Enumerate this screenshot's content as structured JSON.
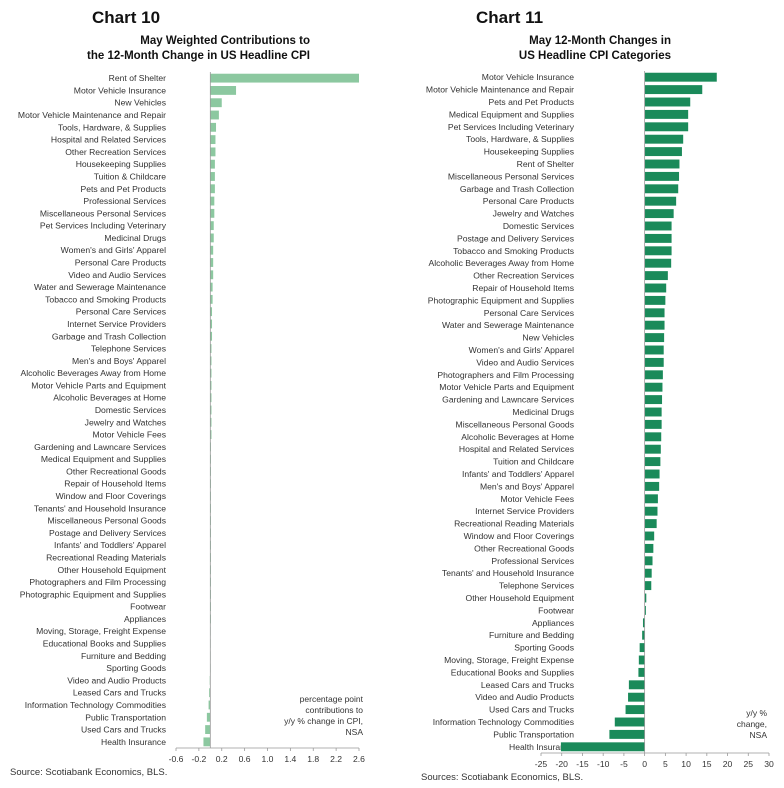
{
  "left": {
    "chart_number": "Chart 10",
    "title_line1": "May Weighted Contributions to",
    "title_line2": "the 12-Month Change in US Headline CPI",
    "note_lines": [
      "percentage point",
      "contributions to",
      "y/y % change in CPI,",
      "NSA"
    ],
    "source": "Source: Scotiabank Economics, BLS.",
    "bar_color": "#8cc8a0"
  },
  "right": {
    "chart_number": "Chart 11",
    "title_line1": "May 12-Month Changes in",
    "title_line2": "US Headline CPI Categories",
    "note_lines": [
      "y/y %",
      "change,",
      "NSA"
    ],
    "source": "Sources: Scotiabank Economics, BLS.",
    "bar_color": "#1a8a5a"
  },
  "chart_data": [
    {
      "type": "bar",
      "orientation": "horizontal",
      "title": "May Weighted Contributions to the 12-Month Change in US Headline CPI",
      "xlim": [
        -0.6,
        2.6
      ],
      "xticks": [
        "-0.6",
        "-0.2",
        "0.2",
        "0.6",
        "1.0",
        "1.4",
        "1.8",
        "2.2",
        "2.6"
      ],
      "grid": false,
      "categories": [
        "Rent of Shelter",
        "Motor Vehicle Insurance",
        "New Vehicles",
        "Motor Vehicle Maintenance and Repair",
        "Tools, Hardware, & Supplies",
        "Hospital and Related Services",
        "Other Recreation Services",
        "Housekeeping Supplies",
        "Tuition & Childcare",
        "Pets and Pet Products",
        "Professional Services",
        "Miscellaneous Personal Services",
        "Pet Services Including Veterinary",
        "Medicinal Drugs",
        "Women's and Girls' Apparel",
        "Personal Care Products",
        "Video and Audio Services",
        "Water and Sewerage Maintenance",
        "Tobacco and Smoking Products",
        "Personal Care Services",
        "Internet Service Providers",
        "Garbage and Trash Collection",
        "Telephone Services",
        "Men's and Boys' Apparel",
        "Alcoholic Beverages Away from Home",
        "Motor Vehicle Parts and Equipment",
        "Alcoholic Beverages at Home",
        "Domestic Services",
        "Jewelry and Watches",
        "Motor Vehicle Fees",
        "Gardening and Lawncare Services",
        "Medical Equipment and Supplies",
        "Other Recreational Goods",
        "Repair of Household Items",
        "Window and Floor Coverings",
        "Tenants' and Household Insurance",
        "Miscellaneous Personal Goods",
        "Postage and Delivery Services",
        "Infants' and Toddlers' Apparel",
        "Recreational Reading Materials",
        "Other Household Equipment",
        "Photographers and Film Processing",
        "Photographic Equipment and Supplies",
        "Footwear",
        "Appliances",
        "Moving, Storage, Freight Expense",
        "Educational Books and Supplies",
        "Furniture and Bedding",
        "Sporting Goods",
        "Video and Audio Products",
        "Leased Cars and Trucks",
        "Information Technology Commodities",
        "Public Transportation",
        "Used Cars and Trucks",
        "Health Insurance"
      ],
      "values": [
        2.6,
        0.45,
        0.2,
        0.15,
        0.1,
        0.09,
        0.09,
        0.08,
        0.08,
        0.08,
        0.07,
        0.07,
        0.06,
        0.06,
        0.05,
        0.05,
        0.05,
        0.04,
        0.04,
        0.03,
        0.03,
        0.03,
        0.02,
        0.02,
        0.02,
        0.02,
        0.02,
        0.02,
        0.02,
        0.02,
        0.01,
        0.01,
        0.01,
        0.01,
        0.01,
        0.01,
        0.01,
        0.01,
        0.01,
        0.01,
        0.005,
        0.005,
        0.005,
        0.0,
        0.0,
        -0.005,
        -0.005,
        -0.005,
        -0.005,
        -0.01,
        -0.02,
        -0.03,
        -0.06,
        -0.09,
        -0.12
      ]
    },
    {
      "type": "bar",
      "orientation": "horizontal",
      "title": "May 12-Month Changes in US Headline CPI Categories",
      "xlim": [
        -25,
        30
      ],
      "xticks": [
        "-25",
        "-20",
        "-15",
        "-10",
        "-5",
        "0",
        "5",
        "10",
        "15",
        "20",
        "25",
        "30"
      ],
      "grid": false,
      "categories": [
        "Motor Vehicle Insurance",
        "Motor Vehicle Maintenance and Repair",
        "Pets and Pet Products",
        "Medical Equipment and Supplies",
        "Pet Services Including Veterinary",
        "Tools, Hardware, & Supplies",
        "Housekeeping Supplies",
        "Rent of Shelter",
        "Miscellaneous Personal Services",
        "Garbage and Trash Collection",
        "Personal Care Products",
        "Jewelry and Watches",
        "Domestic Services",
        "Postage and Delivery Services",
        "Tobacco and Smoking Products",
        "Alcoholic Beverages Away from Home",
        "Other Recreation Services",
        "Repair of Household Items",
        "Photographic Equipment and Supplies",
        "Personal Care Services",
        "Water and Sewerage Maintenance",
        "New Vehicles",
        "Women's and Girls' Apparel",
        "Video and Audio Services",
        "Photographers and Film Processing",
        "Motor Vehicle Parts and Equipment",
        "Gardening and Lawncare Services",
        "Medicinal Drugs",
        "Miscellaneous Personal Goods",
        "Alcoholic Beverages at Home",
        "Hospital and Related Services",
        "Tuition and Childcare",
        "Infants' and Toddlers' Apparel",
        "Men's and Boys' Apparel",
        "Motor Vehicle Fees",
        "Internet Service Providers",
        "Recreational Reading Materials",
        "Window and Floor Coverings",
        "Other Recreational Goods",
        "Professional Services",
        "Tenants' and Household Insurance",
        "Telephone Services",
        "Other Household Equipment",
        "Footwear",
        "Appliances",
        "Furniture and Bedding",
        "Sporting Goods",
        "Moving, Storage, Freight Expense",
        "Educational Books and Supplies",
        "Leased Cars and Trucks",
        "Video and Audio Products",
        "Used Cars and Trucks",
        "Information Technology Commodities",
        "Public Transportation",
        "Health Insurance"
      ],
      "values": [
        17.4,
        13.9,
        11.0,
        10.5,
        10.5,
        9.3,
        9.0,
        8.4,
        8.3,
        8.1,
        7.6,
        7.0,
        6.5,
        6.5,
        6.5,
        6.4,
        5.6,
        5.2,
        5.0,
        4.8,
        4.8,
        4.7,
        4.6,
        4.6,
        4.4,
        4.3,
        4.2,
        4.1,
        4.1,
        4.0,
        3.9,
        3.8,
        3.6,
        3.5,
        3.2,
        3.1,
        2.9,
        2.3,
        2.1,
        1.9,
        1.7,
        1.6,
        0.4,
        0.3,
        -0.4,
        -0.6,
        -1.2,
        -1.4,
        -1.5,
        -3.8,
        -4.0,
        -4.6,
        -7.2,
        -8.5,
        -20.2
      ]
    }
  ]
}
